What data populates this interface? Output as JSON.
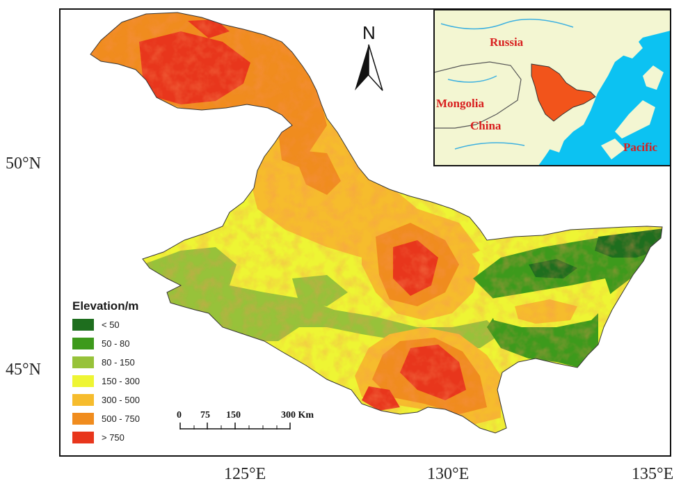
{
  "map": {
    "lat_labels": [
      "50°N",
      "45°N"
    ],
    "lon_labels": [
      "125°E",
      "130°E",
      "135°E"
    ],
    "north_label": "N"
  },
  "legend": {
    "title": "Elevation/m",
    "classes": [
      {
        "label": "< 50",
        "color": "#1e6e1e"
      },
      {
        "label": "50 - 80",
        "color": "#3d9a1c"
      },
      {
        "label": "80 - 150",
        "color": "#97c23a"
      },
      {
        "label": "150 - 300",
        "color": "#eef534"
      },
      {
        "label": "300 - 500",
        "color": "#f6bc2d"
      },
      {
        "label": "500 - 750",
        "color": "#f08c1e"
      },
      {
        "label": "> 750",
        "color": "#e8361c"
      }
    ]
  },
  "scale_bar": {
    "labels": [
      "0",
      "75",
      "150",
      "300 Km"
    ]
  },
  "inset": {
    "labels": [
      "Russia",
      "Mongolia",
      "China",
      "Pacific"
    ],
    "land_color": "#f3f6d2",
    "sea_color": "#0cc2f2",
    "region_color": "#f2541b"
  }
}
